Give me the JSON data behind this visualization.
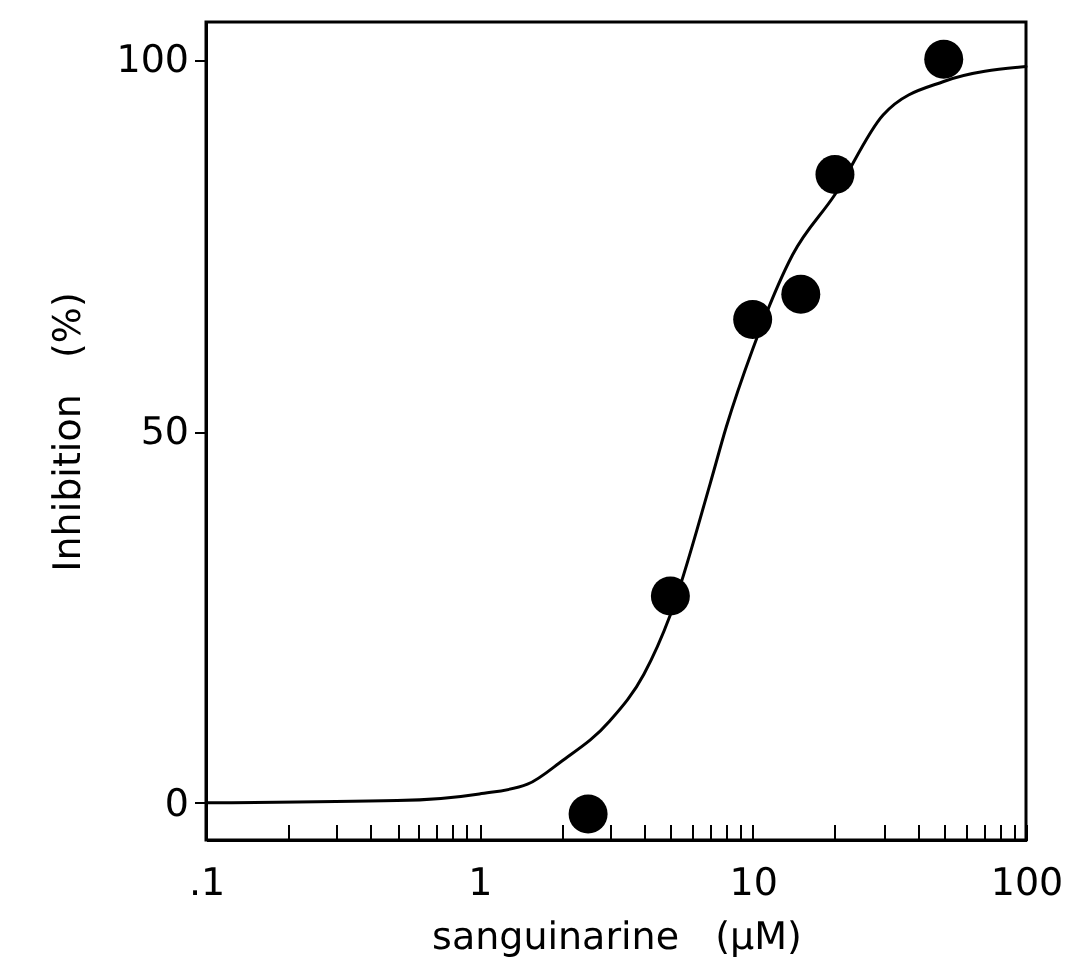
{
  "chart_data": {
    "type": "scatter",
    "xlabel": "sanguinarine   (µM)",
    "ylabel": "Inhibition   (%)",
    "log": "x",
    "xlim": [
      0.1,
      100
    ],
    "ylim": [
      -5,
      105
    ],
    "xticks": [
      {
        "value": 0.1,
        "label": ".1"
      },
      {
        "value": 0.2,
        "label": null
      },
      {
        "value": 0.3,
        "label": null
      },
      {
        "value": 0.4,
        "label": null
      },
      {
        "value": 0.5,
        "label": null
      },
      {
        "value": 0.6,
        "label": null
      },
      {
        "value": 0.7,
        "label": null
      },
      {
        "value": 0.8,
        "label": null
      },
      {
        "value": 0.9,
        "label": null
      },
      1,
      {
        "value": 2,
        "label": null
      },
      {
        "value": 3,
        "label": null
      },
      {
        "value": 4,
        "label": null
      },
      {
        "value": 5,
        "label": null
      },
      {
        "value": 6,
        "label": null
      },
      {
        "value": 7,
        "label": null
      },
      {
        "value": 8,
        "label": null
      },
      {
        "value": 9,
        "label": null
      },
      10,
      {
        "value": 20,
        "label": null
      },
      {
        "value": 30,
        "label": null
      },
      {
        "value": 40,
        "label": null
      },
      {
        "value": 50,
        "label": null
      },
      {
        "value": 60,
        "label": null
      },
      {
        "value": 70,
        "label": null
      },
      {
        "value": 80,
        "label": null
      },
      {
        "value": 90,
        "label": null
      },
      100
    ],
    "yticks": [
      0,
      50,
      100
    ],
    "grid": false,
    "marker": "circle",
    "series": [
      {
        "type": "line",
        "color": "#000000",
        "marker": "none",
        "x": [
          0.1,
          0.5,
          1,
          1.5,
          2,
          3,
          4,
          5,
          7,
          8,
          10,
          14,
          20,
          30,
          50,
          100
        ],
        "values": [
          0,
          0.3,
          1.2,
          2.5,
          5.6,
          11,
          17.3,
          25.3,
          43,
          50.5,
          61,
          73.7,
          81.8,
          92.5,
          97,
          99
        ]
      },
      {
        "color": "#000000",
        "x": [
          2.5,
          5,
          10,
          15,
          20,
          50
        ],
        "values": [
          -1.5,
          27.8,
          65,
          68.4,
          84.5,
          100
        ]
      }
    ]
  }
}
